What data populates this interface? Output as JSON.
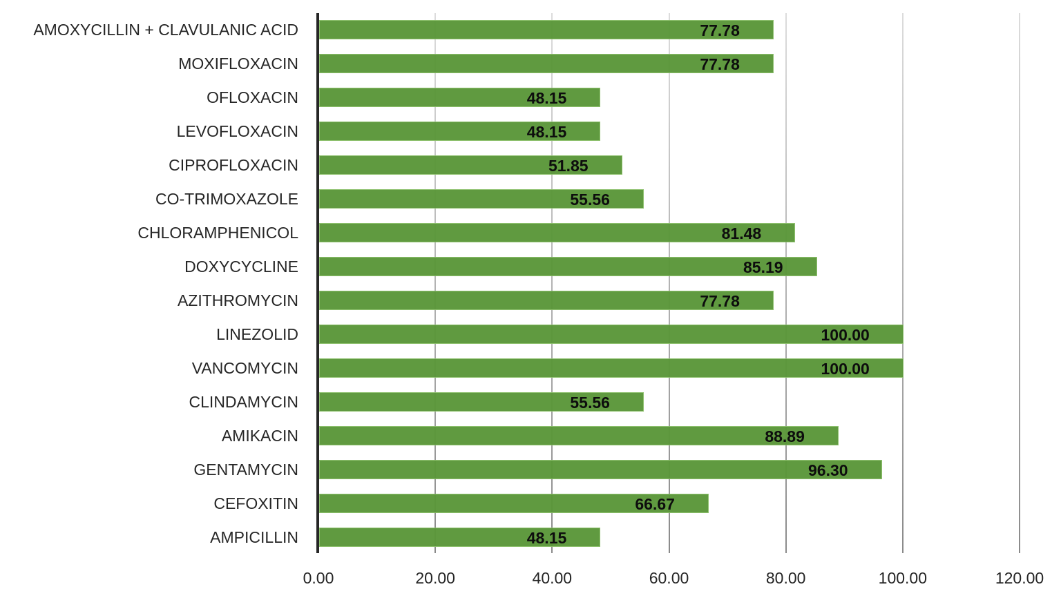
{
  "chart_data": {
    "type": "bar",
    "orientation": "horizontal",
    "title": "",
    "xlabel": "",
    "ylabel": "",
    "xlim": [
      0,
      120
    ],
    "x_ticks": [
      "0.00",
      "20.00",
      "40.00",
      "60.00",
      "80.00",
      "100.00",
      "120.00"
    ],
    "grid": true,
    "legend": null,
    "bar_color": "#5b973a",
    "categories": [
      "AMOXYCILLIN + CLAVULANIC ACID",
      "MOXIFLOXACIN",
      "OFLOXACIN",
      "LEVOFLOXACIN",
      "CIPROFLOXACIN",
      "CO-TRIMOXAZOLE",
      "CHLORAMPHENICOL",
      "DOXYCYCLINE",
      "AZITHROMYCIN",
      "LINEZOLID",
      "VANCOMYCIN",
      "CLINDAMYCIN",
      "AMIKACIN",
      "GENTAMYCIN",
      "CEFOXITIN",
      "AMPICILLIN"
    ],
    "values": [
      77.78,
      77.78,
      48.15,
      48.15,
      51.85,
      55.56,
      81.48,
      85.19,
      77.78,
      100.0,
      100.0,
      55.56,
      88.89,
      96.3,
      66.67,
      48.15
    ],
    "value_labels": [
      "77.78",
      "77.78",
      "48.15",
      "48.15",
      "51.85",
      "55.56",
      "81.48",
      "85.19",
      "77.78",
      "100.00",
      "100.00",
      "55.56",
      "88.89",
      "96.30",
      "66.67",
      "48.15"
    ]
  }
}
